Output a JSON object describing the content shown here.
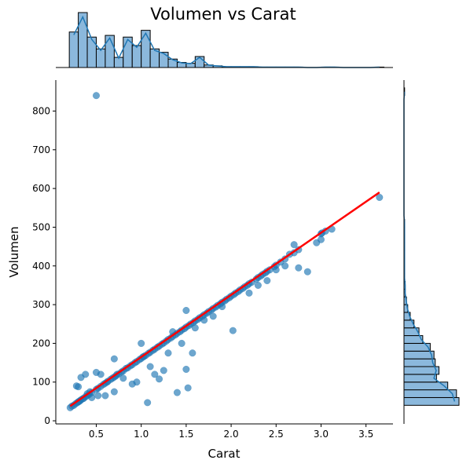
{
  "chart_data": {
    "type": "scatter",
    "title": "Volumen vs Carat",
    "xlabel": "Carat",
    "ylabel": "Volumen",
    "xlim": [
      0.05,
      3.8
    ],
    "ylim": [
      -8,
      880
    ],
    "xticks": [
      0.5,
      1.0,
      1.5,
      2.0,
      2.5,
      3.0,
      3.5
    ],
    "xtick_labels": [
      "0.5",
      "1.0",
      "1.5",
      "2.0",
      "2.5",
      "3.0",
      "3.5"
    ],
    "yticks": [
      0,
      100,
      200,
      300,
      400,
      500,
      600,
      700,
      800
    ],
    "ytick_labels": [
      "0",
      "100",
      "200",
      "300",
      "400",
      "500",
      "600",
      "700",
      "800"
    ],
    "grid": false,
    "series": [
      {
        "type": "scatter",
        "color": "#1f77b4",
        "points": [
          [
            0.21,
            34
          ],
          [
            0.23,
            38
          ],
          [
            0.25,
            40
          ],
          [
            0.27,
            44
          ],
          [
            0.29,
            47
          ],
          [
            0.3,
            49
          ],
          [
            0.31,
            50
          ],
          [
            0.32,
            52
          ],
          [
            0.33,
            54
          ],
          [
            0.35,
            57
          ],
          [
            0.36,
            58
          ],
          [
            0.38,
            62
          ],
          [
            0.4,
            65
          ],
          [
            0.42,
            68
          ],
          [
            0.45,
            73
          ],
          [
            0.5,
            81
          ],
          [
            0.52,
            84
          ],
          [
            0.55,
            89
          ],
          [
            0.58,
            94
          ],
          [
            0.6,
            97
          ],
          [
            0.63,
            102
          ],
          [
            0.66,
            107
          ],
          [
            0.7,
            113
          ],
          [
            0.72,
            116
          ],
          [
            0.75,
            121
          ],
          [
            0.78,
            126
          ],
          [
            0.8,
            129
          ],
          [
            0.85,
            137
          ],
          [
            0.9,
            145
          ],
          [
            0.95,
            153
          ],
          [
            1.0,
            161
          ],
          [
            1.02,
            165
          ],
          [
            1.05,
            169
          ],
          [
            1.1,
            177
          ],
          [
            1.15,
            185
          ],
          [
            1.2,
            193
          ],
          [
            1.25,
            201
          ],
          [
            1.3,
            210
          ],
          [
            1.35,
            218
          ],
          [
            1.4,
            226
          ],
          [
            1.45,
            234
          ],
          [
            1.5,
            242
          ],
          [
            1.55,
            250
          ],
          [
            1.6,
            258
          ],
          [
            1.65,
            266
          ],
          [
            1.7,
            274
          ],
          [
            1.75,
            282
          ],
          [
            1.8,
            290
          ],
          [
            1.85,
            298
          ],
          [
            1.9,
            306
          ],
          [
            1.95,
            314
          ],
          [
            2.0,
            322
          ],
          [
            2.05,
            330
          ],
          [
            2.1,
            338
          ],
          [
            2.15,
            346
          ],
          [
            2.2,
            354
          ],
          [
            2.3,
            370
          ],
          [
            2.35,
            378
          ],
          [
            2.4,
            386
          ],
          [
            2.5,
            402
          ],
          [
            2.55,
            410
          ],
          [
            2.6,
            418
          ],
          [
            2.7,
            434
          ],
          [
            2.75,
            442
          ],
          [
            3.0,
            483
          ],
          [
            3.01,
            485
          ],
          [
            3.05,
            490
          ],
          [
            3.12,
            495
          ],
          [
            3.65,
            577
          ],
          [
            0.5,
            840
          ],
          [
            0.3,
            88
          ],
          [
            0.28,
            90
          ],
          [
            0.33,
            112
          ],
          [
            0.38,
            120
          ],
          [
            0.5,
            125
          ],
          [
            0.55,
            120
          ],
          [
            0.52,
            65
          ],
          [
            0.7,
            160
          ],
          [
            0.7,
            75
          ],
          [
            0.95,
            100
          ],
          [
            1.0,
            200
          ],
          [
            1.07,
            47
          ],
          [
            1.15,
            120
          ],
          [
            1.2,
            108
          ],
          [
            1.4,
            73
          ],
          [
            1.5,
            133
          ],
          [
            1.52,
            85
          ],
          [
            1.57,
            175
          ],
          [
            2.02,
            233
          ],
          [
            1.5,
            285
          ],
          [
            2.75,
            395
          ],
          [
            2.85,
            385
          ],
          [
            2.95,
            460
          ],
          [
            3.0,
            468
          ],
          [
            1.25,
            130
          ],
          [
            0.9,
            95
          ],
          [
            0.6,
            65
          ],
          [
            0.45,
            60
          ],
          [
            0.8,
            110
          ],
          [
            1.1,
            140
          ],
          [
            1.3,
            175
          ],
          [
            1.35,
            230
          ],
          [
            1.45,
            200
          ],
          [
            1.6,
            240
          ],
          [
            1.7,
            260
          ],
          [
            1.8,
            270
          ],
          [
            1.9,
            295
          ],
          [
            2.2,
            330
          ],
          [
            2.3,
            350
          ],
          [
            2.4,
            362
          ],
          [
            2.5,
            390
          ],
          [
            2.6,
            400
          ],
          [
            2.65,
            430
          ],
          [
            2.7,
            455
          ],
          [
            0.4,
            70
          ],
          [
            0.43,
            75
          ],
          [
            0.62,
            100
          ],
          [
            0.68,
            110
          ],
          [
            0.73,
            120
          ],
          [
            0.83,
            135
          ],
          [
            0.88,
            142
          ],
          [
            0.93,
            150
          ],
          [
            0.98,
            158
          ],
          [
            1.03,
            166
          ],
          [
            1.08,
            174
          ],
          [
            1.13,
            182
          ],
          [
            1.18,
            190
          ],
          [
            1.23,
            198
          ],
          [
            1.28,
            206
          ],
          [
            1.33,
            214
          ],
          [
            1.38,
            222
          ],
          [
            1.43,
            230
          ],
          [
            1.48,
            238
          ],
          [
            1.53,
            246
          ],
          [
            1.58,
            254
          ],
          [
            1.63,
            262
          ],
          [
            1.68,
            270
          ],
          [
            1.73,
            278
          ],
          [
            1.78,
            286
          ],
          [
            1.83,
            294
          ],
          [
            1.88,
            302
          ],
          [
            1.93,
            310
          ],
          [
            1.98,
            318
          ],
          [
            2.03,
            326
          ],
          [
            2.08,
            334
          ],
          [
            2.13,
            342
          ],
          [
            2.18,
            350
          ],
          [
            2.23,
            358
          ],
          [
            2.28,
            366
          ],
          [
            2.33,
            374
          ],
          [
            2.38,
            382
          ],
          [
            2.43,
            390
          ],
          [
            2.48,
            398
          ]
        ]
      },
      {
        "type": "line",
        "color": "#ff0000",
        "x": [
          0.21,
          3.65
        ],
        "y": [
          38,
          590
        ]
      }
    ],
    "marginal_x": {
      "type": "histogram",
      "bin_edges": [
        0.2,
        0.3,
        0.4,
        0.5,
        0.6,
        0.7,
        0.8,
        0.9,
        1.0,
        1.1,
        1.2,
        1.3,
        1.4,
        1.5,
        1.6,
        1.7,
        1.8,
        1.9,
        2.0,
        2.1,
        2.2,
        2.3,
        2.4,
        2.5,
        2.6,
        2.7,
        2.8,
        2.9,
        3.0,
        3.1,
        3.2,
        3.3,
        3.4,
        3.5,
        3.6,
        3.7
      ],
      "counts": [
        42,
        65,
        36,
        22,
        38,
        12,
        36,
        26,
        44,
        22,
        18,
        10,
        6,
        5,
        13,
        3,
        2,
        1,
        1,
        1,
        1,
        0.5,
        0.5,
        0.5,
        0.5,
        0.5,
        0,
        0,
        0.5,
        0.5,
        0,
        0,
        0,
        0,
        0.5
      ],
      "max_count": 65
    },
    "marginal_y": {
      "type": "histogram",
      "bin_edges": [
        40,
        60,
        80,
        100,
        120,
        140,
        160,
        180,
        200,
        220,
        240,
        260,
        280,
        300,
        320,
        340,
        360,
        380,
        400,
        420,
        440,
        460,
        480,
        500,
        520,
        540,
        560,
        580,
        600,
        620,
        640,
        660,
        680,
        700,
        720,
        740,
        760,
        780,
        800,
        820,
        840,
        860
      ],
      "counts": [
        44,
        42,
        35,
        26,
        28,
        25,
        24,
        21,
        15,
        12,
        8,
        5,
        3,
        2,
        1,
        1,
        0.5,
        0.5,
        0.5,
        0.5,
        0.5,
        0.5,
        0.5,
        0.5,
        0,
        0,
        0,
        0,
        0,
        0,
        0,
        0,
        0,
        0,
        0,
        0,
        0,
        0,
        0,
        0,
        0.5
      ],
      "max_count": 44
    }
  }
}
